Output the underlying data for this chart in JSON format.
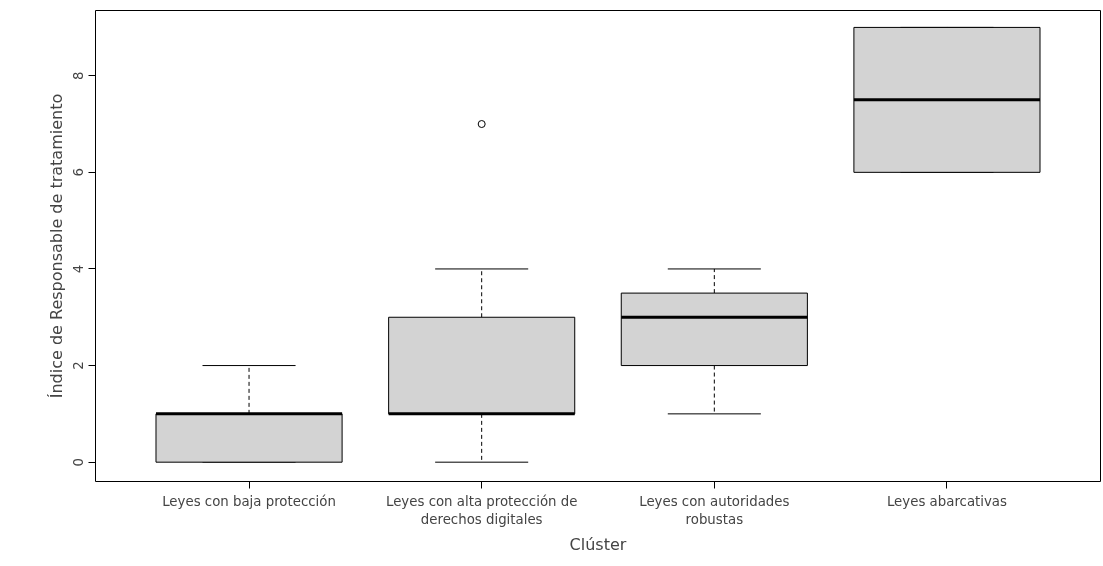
{
  "chart_data": {
    "type": "box",
    "xlabel": "Clúster",
    "ylabel": "Índice de Responsable de tratamiento",
    "categories": [
      "Leyes con baja protección",
      "Leyes con alta protección de\nderechos digitales",
      "Leyes con autoridades\nrobustas",
      "Leyes abarcativas"
    ],
    "boxes": [
      {
        "low": 0,
        "q1": 0,
        "median": 1,
        "q3": 1,
        "high": 2
      },
      {
        "low": 0,
        "q1": 1,
        "median": 1,
        "q3": 3,
        "high": 4,
        "outliers": [
          7
        ]
      },
      {
        "low": 1,
        "q1": 2,
        "median": 3,
        "q3": 3.5,
        "high": 4
      },
      {
        "low": 6,
        "q1": 6,
        "median": 7.5,
        "q3": 9,
        "high": 9
      }
    ],
    "color": "#d3d3d3",
    "ylim": [
      -0.4,
      9.35
    ],
    "yticks": [
      0,
      2,
      4,
      6,
      8
    ],
    "grid": false
  }
}
